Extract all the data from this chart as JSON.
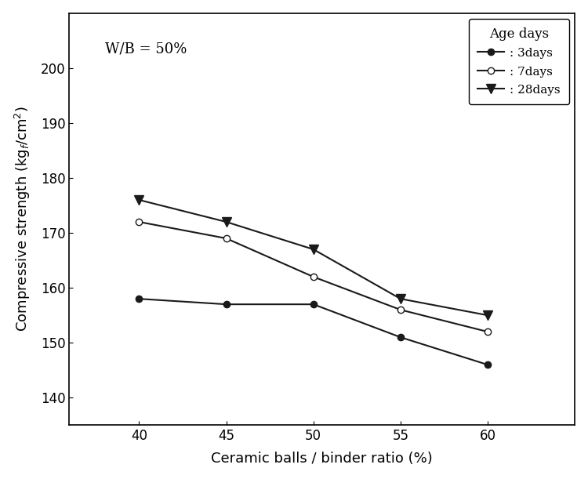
{
  "x": [
    40,
    45,
    50,
    55,
    60
  ],
  "series_3days": [
    158,
    157,
    157,
    151,
    146
  ],
  "series_7days": [
    172,
    169,
    162,
    156,
    152
  ],
  "series_28days": [
    176,
    172,
    167,
    158,
    155
  ],
  "xlabel": "Ceramic balls / binder ratio (%)",
  "ylabel": "Compressive strength (kg$_f$/cm$^2$)",
  "annotation": "W/B = 50%",
  "legend_title": "Age days",
  "legend_labels": [
    ": 3days",
    ": 7days",
    ": 28days"
  ],
  "xlim": [
    36,
    65
  ],
  "ylim": [
    135,
    210
  ],
  "yticks": [
    140,
    150,
    160,
    170,
    180,
    190,
    200
  ],
  "xticks": [
    40,
    45,
    50,
    55,
    60
  ],
  "line_color": "#1a1a1a",
  "bg_color": "#ffffff",
  "label_fontsize": 13,
  "tick_fontsize": 12,
  "legend_fontsize": 11,
  "annot_fontsize": 13
}
